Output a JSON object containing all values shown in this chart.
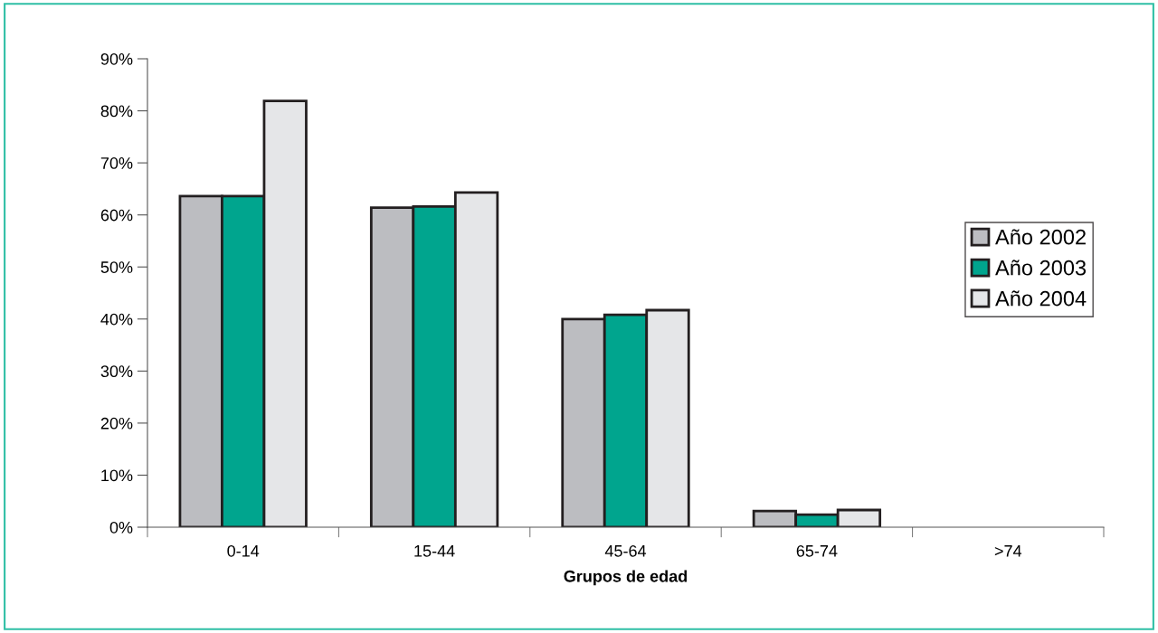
{
  "chart_data": {
    "type": "bar",
    "xlabel": "Grupos de edad",
    "categories": [
      "0-14",
      "15-44",
      "45-64",
      "65-74",
      ">74"
    ],
    "series": [
      {
        "name": "Año 2002",
        "color": "#bcbdc1",
        "values": [
          63.6,
          61.4,
          40.0,
          3.1,
          null
        ]
      },
      {
        "name": "Año 2003",
        "color": "#00a58e",
        "values": [
          63.6,
          61.6,
          40.8,
          2.4,
          null
        ]
      },
      {
        "name": "Año 2004",
        "color": "#e5e6e8",
        "values": [
          81.9,
          64.3,
          41.7,
          3.3,
          null
        ]
      }
    ],
    "ylim": [
      0,
      90
    ],
    "yticks": [
      {
        "value": 0,
        "label": "0%"
      },
      {
        "value": 10,
        "label": "10%"
      },
      {
        "value": 20,
        "label": "20%"
      },
      {
        "value": 30,
        "label": "30%"
      },
      {
        "value": 40,
        "label": "40%"
      },
      {
        "value": 50,
        "label": "50%"
      },
      {
        "value": 60,
        "label": "60%"
      },
      {
        "value": 70,
        "label": "70%"
      },
      {
        "value": 80,
        "label": "80%"
      },
      {
        "value": 90,
        "label": "90%"
      }
    ],
    "grid": false,
    "legend": "right"
  }
}
